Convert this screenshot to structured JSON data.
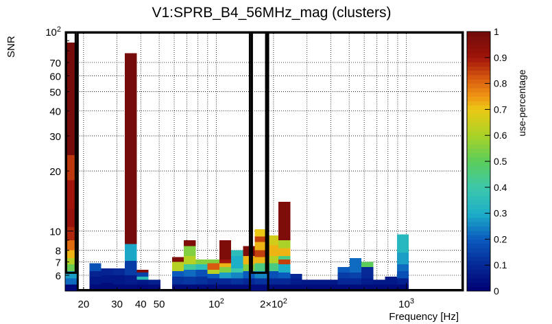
{
  "chart_data": {
    "type": "heatmap",
    "title": "V1:SPRB_B4_56MHz_mag (clusters)",
    "xlabel": "Frequency [Hz]",
    "ylabel": "SNR",
    "zlabel": "use-percentage",
    "x_scale": "log",
    "y_scale": "log",
    "xlim": [
      16,
      2000
    ],
    "ylim": [
      5,
      100
    ],
    "zlim": [
      0,
      1
    ],
    "x_ticks": [
      {
        "value": 20,
        "label": "20"
      },
      {
        "value": 30,
        "label": "30"
      },
      {
        "value": 40,
        "label": "40"
      },
      {
        "value": 50,
        "label": "50"
      },
      {
        "value": 100,
        "label": "10",
        "sup": "2"
      },
      {
        "value": 200,
        "label": "2×10",
        "sup": "2"
      },
      {
        "value": 1000,
        "label": "10",
        "sup": "3"
      }
    ],
    "y_ticks": [
      {
        "value": 6,
        "label": "6"
      },
      {
        "value": 7,
        "label": "7"
      },
      {
        "value": 8,
        "label": "8"
      },
      {
        "value": 10,
        "label": "10"
      },
      {
        "value": 20,
        "label": "20"
      },
      {
        "value": 30,
        "label": "30"
      },
      {
        "value": 40,
        "label": "40"
      },
      {
        "value": 50,
        "label": "50"
      },
      {
        "value": 60,
        "label": "60"
      },
      {
        "value": 70,
        "label": "70"
      },
      {
        "value": 100,
        "label": "10",
        "sup": "2"
      }
    ],
    "z_ticks": [
      "0",
      "0.1",
      "0.2",
      "0.3",
      "0.4",
      "0.5",
      "0.6",
      "0.7",
      "0.8",
      "0.9",
      "1"
    ],
    "columns": [
      {
        "f0": 16.0,
        "f1": 18.4,
        "cells": [
          [
            5.0,
            5.4,
            0.02
          ],
          [
            5.4,
            5.8,
            0.22
          ],
          [
            5.8,
            6.3,
            0.28
          ],
          [
            6.3,
            6.8,
            0.52
          ],
          [
            6.8,
            7.3,
            0.62
          ],
          [
            7.3,
            8.0,
            0.72
          ],
          [
            8.0,
            9.0,
            0.8
          ],
          [
            9.0,
            10.5,
            0.88
          ],
          [
            10.5,
            13.0,
            0.92
          ],
          [
            13.0,
            18.0,
            0.9
          ],
          [
            18.0,
            24.0,
            0.86
          ],
          [
            24.0,
            88.0,
            0.99
          ]
        ]
      },
      {
        "f0": 21.5,
        "f1": 24.8,
        "cells": [
          [
            5.0,
            5.4,
            0.03
          ],
          [
            5.4,
            5.9,
            0.06
          ],
          [
            5.9,
            6.3,
            0.09
          ],
          [
            6.3,
            6.9,
            0.18
          ]
        ]
      },
      {
        "f0": 24.8,
        "f1": 28.6,
        "cells": [
          [
            5.0,
            5.5,
            0.03
          ],
          [
            5.5,
            6.0,
            0.06
          ],
          [
            6.0,
            6.5,
            0.09
          ]
        ]
      },
      {
        "f0": 28.6,
        "f1": 33.0,
        "cells": [
          [
            5.0,
            5.4,
            0.03
          ],
          [
            5.4,
            6.0,
            0.06
          ],
          [
            6.0,
            6.5,
            0.1
          ]
        ]
      },
      {
        "f0": 33.0,
        "f1": 38.1,
        "cells": [
          [
            5.0,
            5.4,
            0.03
          ],
          [
            5.4,
            6.0,
            0.07
          ],
          [
            6.0,
            7.1,
            0.14
          ],
          [
            7.1,
            8.6,
            0.29
          ],
          [
            8.6,
            78.0,
            0.99
          ]
        ]
      },
      {
        "f0": 38.1,
        "f1": 43.9,
        "cells": [
          [
            5.0,
            5.4,
            0.02
          ],
          [
            5.4,
            5.7,
            0.06
          ],
          [
            5.7,
            5.9,
            0.35
          ],
          [
            5.9,
            6.2,
            0.15
          ],
          [
            6.2,
            6.4,
            0.97
          ]
        ]
      },
      {
        "f0": 43.9,
        "f1": 50.7,
        "cells": [
          [
            5.0,
            5.4,
            0.03
          ],
          [
            5.4,
            5.7,
            0.08
          ]
        ]
      },
      {
        "f0": 50.7,
        "f1": 58.5,
        "cells": [
          [
            5.0,
            5.1,
            0.02
          ]
        ]
      },
      {
        "f0": 58.5,
        "f1": 67.5,
        "cells": [
          [
            5.0,
            5.4,
            0.03
          ],
          [
            5.4,
            5.9,
            0.12
          ],
          [
            5.9,
            6.3,
            0.2
          ],
          [
            6.3,
            7.0,
            0.62
          ],
          [
            7.0,
            7.4,
            0.97
          ]
        ]
      },
      {
        "f0": 67.5,
        "f1": 77.9,
        "cells": [
          [
            5.0,
            5.4,
            0.03
          ],
          [
            5.4,
            5.9,
            0.13
          ],
          [
            5.9,
            6.4,
            0.22
          ],
          [
            6.4,
            6.8,
            0.42
          ],
          [
            6.8,
            7.5,
            0.62
          ],
          [
            7.5,
            8.4,
            0.55
          ],
          [
            8.4,
            9.0,
            0.97
          ]
        ]
      },
      {
        "f0": 77.9,
        "f1": 89.9,
        "cells": [
          [
            5.0,
            5.4,
            0.03
          ],
          [
            5.4,
            5.9,
            0.12
          ],
          [
            5.9,
            6.4,
            0.18
          ],
          [
            6.4,
            6.8,
            0.35
          ],
          [
            6.8,
            7.2,
            0.55
          ]
        ]
      },
      {
        "f0": 89.9,
        "f1": 103.8,
        "cells": [
          [
            5.0,
            5.4,
            0.03
          ],
          [
            5.4,
            5.8,
            0.1
          ],
          [
            5.8,
            6.1,
            0.2
          ],
          [
            6.1,
            6.4,
            0.62
          ],
          [
            6.4,
            6.9,
            0.82
          ],
          [
            6.9,
            7.2,
            0.55
          ]
        ]
      },
      {
        "f0": 103.8,
        "f1": 119.7,
        "cells": [
          [
            5.0,
            5.4,
            0.03
          ],
          [
            5.4,
            5.8,
            0.1
          ],
          [
            5.8,
            6.2,
            0.28
          ],
          [
            6.2,
            6.6,
            0.55
          ],
          [
            6.6,
            6.9,
            0.72
          ],
          [
            6.9,
            7.2,
            0.9
          ],
          [
            7.2,
            9.0,
            0.97
          ]
        ]
      },
      {
        "f0": 119.7,
        "f1": 138.2,
        "cells": [
          [
            5.0,
            5.4,
            0.03
          ],
          [
            5.4,
            5.8,
            0.12
          ],
          [
            5.8,
            6.2,
            0.25
          ],
          [
            6.2,
            6.5,
            0.4
          ],
          [
            6.5,
            7.5,
            0.3
          ],
          [
            7.5,
            8.0,
            0.35
          ]
        ]
      },
      {
        "f0": 138.2,
        "f1": 159.5,
        "cells": [
          [
            5.0,
            5.4,
            0.03
          ],
          [
            5.4,
            5.8,
            0.1
          ],
          [
            5.8,
            6.3,
            0.2
          ],
          [
            6.3,
            6.8,
            0.55
          ],
          [
            6.8,
            7.5,
            0.72
          ],
          [
            7.5,
            8.4,
            0.97
          ]
        ]
      },
      {
        "f0": 159.5,
        "f1": 184.1,
        "cells": [
          [
            5.0,
            5.4,
            0.03
          ],
          [
            5.4,
            5.8,
            0.12
          ],
          [
            5.8,
            6.3,
            0.25
          ],
          [
            6.3,
            6.9,
            0.45
          ],
          [
            6.9,
            7.4,
            0.72
          ],
          [
            7.4,
            8.0,
            0.85
          ],
          [
            8.0,
            8.8,
            0.72
          ],
          [
            8.8,
            9.4,
            0.85
          ],
          [
            9.4,
            10.2,
            0.7
          ]
        ]
      },
      {
        "f0": 184.1,
        "f1": 212.5,
        "cells": [
          [
            5.0,
            5.4,
            0.03
          ],
          [
            5.4,
            5.8,
            0.1
          ],
          [
            5.8,
            6.3,
            0.18
          ],
          [
            6.3,
            6.9,
            0.45
          ],
          [
            6.9,
            7.5,
            0.62
          ],
          [
            7.5,
            8.5,
            0.72
          ],
          [
            8.5,
            9.5,
            0.66
          ]
        ]
      },
      {
        "f0": 212.5,
        "f1": 245.3,
        "cells": [
          [
            5.0,
            5.4,
            0.03
          ],
          [
            5.4,
            5.8,
            0.1
          ],
          [
            5.8,
            6.2,
            0.2
          ],
          [
            6.2,
            6.8,
            0.3
          ],
          [
            6.8,
            7.2,
            0.85
          ],
          [
            7.2,
            7.5,
            0.45
          ],
          [
            7.5,
            8.2,
            0.72
          ],
          [
            8.2,
            9.0,
            0.6
          ],
          [
            9.0,
            14.0,
            0.97
          ]
        ]
      },
      {
        "f0": 245.3,
        "f1": 283.1,
        "cells": [
          [
            5.0,
            5.4,
            0.03
          ],
          [
            5.4,
            5.8,
            0.07
          ],
          [
            5.8,
            6.1,
            0.1
          ]
        ]
      },
      {
        "f0": 283.1,
        "f1": 326.8,
        "cells": [
          [
            5.0,
            5.4,
            0.03
          ],
          [
            5.4,
            5.7,
            0.06
          ]
        ]
      },
      {
        "f0": 326.8,
        "f1": 377.2,
        "cells": [
          [
            5.0,
            5.4,
            0.03
          ],
          [
            5.4,
            5.7,
            0.06
          ]
        ]
      },
      {
        "f0": 377.2,
        "f1": 435.4,
        "cells": [
          [
            5.0,
            5.4,
            0.03
          ],
          [
            5.4,
            5.7,
            0.06
          ]
        ]
      },
      {
        "f0": 435.4,
        "f1": 502.6,
        "cells": [
          [
            5.0,
            5.4,
            0.03
          ],
          [
            5.4,
            5.8,
            0.1
          ],
          [
            5.8,
            6.2,
            0.14
          ],
          [
            6.2,
            6.6,
            0.2
          ]
        ]
      },
      {
        "f0": 502.6,
        "f1": 580.2,
        "cells": [
          [
            5.0,
            5.4,
            0.03
          ],
          [
            5.4,
            5.8,
            0.1
          ],
          [
            5.8,
            6.2,
            0.15
          ],
          [
            6.2,
            7.3,
            0.22
          ]
        ]
      },
      {
        "f0": 580.2,
        "f1": 669.7,
        "cells": [
          [
            5.0,
            5.4,
            0.03
          ],
          [
            5.4,
            5.8,
            0.07
          ],
          [
            5.8,
            6.6,
            0.1
          ],
          [
            6.6,
            7.0,
            0.5
          ]
        ]
      },
      {
        "f0": 669.7,
        "f1": 773.1,
        "cells": [
          [
            5.0,
            5.4,
            0.03
          ],
          [
            5.4,
            5.7,
            0.06
          ]
        ]
      },
      {
        "f0": 773.1,
        "f1": 892.4,
        "cells": [
          [
            5.0,
            5.4,
            0.03
          ],
          [
            5.4,
            5.9,
            0.06
          ]
        ]
      },
      {
        "f0": 892.4,
        "f1": 1030.0,
        "cells": [
          [
            5.0,
            5.4,
            0.03
          ],
          [
            5.4,
            5.8,
            0.08
          ],
          [
            5.8,
            6.3,
            0.18
          ],
          [
            6.3,
            6.8,
            0.22
          ],
          [
            6.8,
            7.8,
            0.28
          ],
          [
            7.8,
            9.6,
            0.33
          ]
        ]
      }
    ],
    "boxes": [
      {
        "f0": 16.0,
        "f1": 18.4,
        "snr0": 6.1,
        "snr1": 100
      },
      {
        "f0": 18.4,
        "f1": 152.0,
        "snr0": 5.0,
        "snr1": 100
      },
      {
        "f0": 152.0,
        "f1": 185.0,
        "snr0": 6.1,
        "snr1": 100
      },
      {
        "f0": 185.0,
        "f1": 2000,
        "snr0": 5.0,
        "snr1": 100
      }
    ]
  }
}
